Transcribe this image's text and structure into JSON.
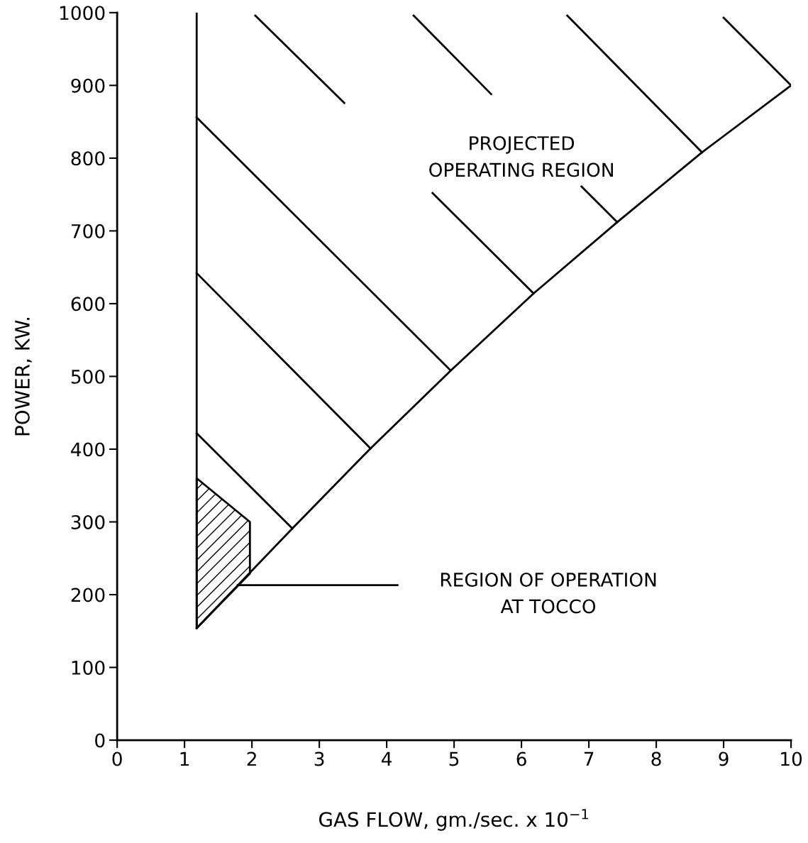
{
  "chart_data": {
    "type": "line",
    "xlabel": "GAS FLOW, gm./sec. x 10$^{−1}$",
    "ylabel": "POWER, KW.",
    "xlim": [
      0,
      10
    ],
    "ylim": [
      0,
      1000
    ],
    "xticks": [
      0,
      1,
      2,
      3,
      4,
      5,
      6,
      7,
      8,
      9,
      10
    ],
    "yticks": [
      0,
      100,
      200,
      300,
      400,
      500,
      600,
      700,
      800,
      900,
      1000
    ],
    "grid": false,
    "marker": "none",
    "line_style": "solid",
    "series": [
      {
        "color": "#000000",
        "x": [
          1.18,
          2.6,
          3.76,
          4.95,
          6.18,
          7.42,
          8.68,
          10.0
        ],
        "values": [
          154,
          291,
          401,
          508,
          614,
          712,
          808,
          900
        ]
      },
      {
        "color": "#000000",
        "x": [
          1.18,
          1.18
        ],
        "values": [
          154,
          1000
        ]
      },
      {
        "color": "#000000",
        "x": [
          1.18,
          4.95
        ],
        "values": [
          856,
          508
        ]
      },
      {
        "color": "#000000",
        "x": [
          1.18,
          3.76
        ],
        "values": [
          642,
          401
        ]
      },
      {
        "color": "#000000",
        "x": [
          1.18,
          2.6
        ],
        "values": [
          422,
          291
        ]
      },
      {
        "color": "#000000",
        "x": [
          2.05,
          3.37
        ],
        "values": [
          996,
          876
        ]
      },
      {
        "color": "#000000",
        "x": [
          4.4,
          5.55
        ],
        "values": [
          996,
          888
        ]
      },
      {
        "color": "#000000",
        "x": [
          4.68,
          6.18
        ],
        "values": [
          752,
          614
        ]
      },
      {
        "color": "#000000",
        "x": [
          6.68,
          8.68
        ],
        "values": [
          996,
          808
        ]
      },
      {
        "color": "#000000",
        "x": [
          6.89,
          7.42
        ],
        "values": [
          761,
          712
        ]
      },
      {
        "color": "#000000",
        "x": [
          9.0,
          10.0
        ],
        "values": [
          993,
          900
        ]
      },
      {
        "color": "#000000",
        "x": [
          1.79,
          4.16
        ],
        "values": [
          213,
          213
        ]
      },
      {
        "type": "area",
        "color": "#000000",
        "x": [
          1.18,
          1.97,
          1.97,
          1.18,
          1.18
        ],
        "values": [
          360,
          300,
          229,
          154,
          360
        ]
      }
    ],
    "annotations": [
      "PROJECTED\nOPERATING REGION",
      "REGION OF OPERATION\nAT TOCCO"
    ]
  }
}
